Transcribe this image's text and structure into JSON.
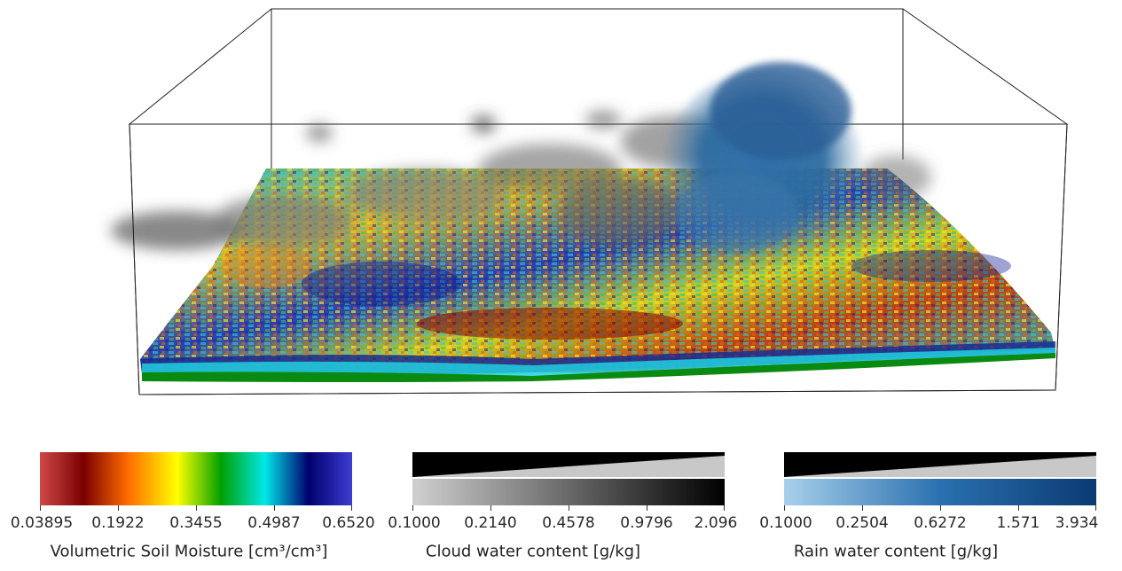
{
  "colorbars": {
    "soil": {
      "label": "Volumetric Soil Moisture [cm³/cm³]",
      "ticks": [
        "0.03895",
        "0.1922",
        "0.3455",
        "0.4987",
        "0.6520"
      ]
    },
    "cloud": {
      "label": "Cloud water content  [g/kg]",
      "ticks": [
        "0.1000",
        "0.2140",
        "0.4578",
        "0.9796",
        "2.096"
      ]
    },
    "rain": {
      "label": "Rain water content [g/kg]",
      "ticks": [
        "0.1000",
        "0.2504",
        "0.6272",
        "1.571",
        "3.934"
      ]
    }
  },
  "colors": {
    "soil_scale": [
      "#d04848",
      "#7a0000",
      "#ff7a00",
      "#ffff00",
      "#00a000",
      "#00e0e0",
      "#000070",
      "#3c3cd0"
    ],
    "cloud_scale": [
      "#d0d0d0",
      "#000000"
    ],
    "rain_scale": [
      "#a8d0ea",
      "#0b3a72"
    ]
  }
}
